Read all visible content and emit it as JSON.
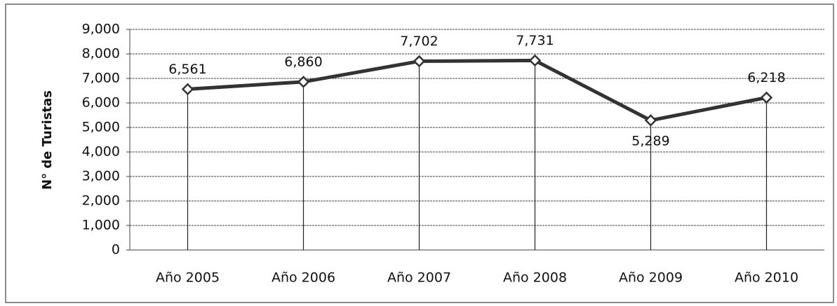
{
  "chart_data": {
    "type": "line",
    "y_label": "N° de Turistas",
    "categories": [
      "Año 2005",
      "Año 2006",
      "Año 2007",
      "Año 2008",
      "Año 2009",
      "Año 2010"
    ],
    "series": [
      {
        "name": "Turistas",
        "color": "#333333",
        "values": [
          6561,
          6860,
          7702,
          7731,
          5289,
          6218
        ],
        "value_labels": [
          "6,561",
          "6,860",
          "7,702",
          "7,731",
          "5,289",
          "6,218"
        ]
      }
    ],
    "ylim": [
      0,
      9000
    ],
    "yticks": [
      0,
      {
        "value": 1000,
        "label": "1,000"
      },
      {
        "value": 2000,
        "label": "2,000"
      },
      {
        "value": 3000,
        "label": "3,000"
      },
      {
        "value": 4000,
        "label": "4,000"
      },
      {
        "value": 5000,
        "label": "5,000"
      },
      {
        "value": 6000,
        "label": "6,000"
      },
      {
        "value": 7000,
        "label": "7,000"
      },
      {
        "value": 8000,
        "label": "8,000"
      },
      {
        "value": 9000,
        "label": "9,000"
      }
    ],
    "grid": true
  }
}
